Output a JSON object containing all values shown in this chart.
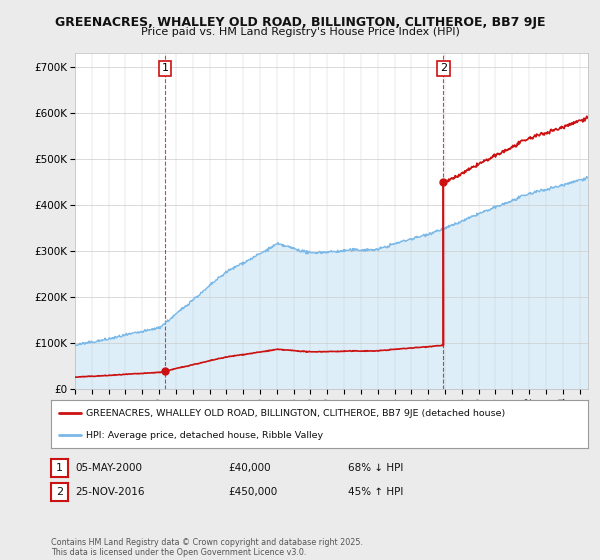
{
  "title_line1": "GREENACRES, WHALLEY OLD ROAD, BILLINGTON, CLITHEROE, BB7 9JE",
  "title_line2": "Price paid vs. HM Land Registry's House Price Index (HPI)",
  "ylim": [
    0,
    730000
  ],
  "yticks": [
    0,
    100000,
    200000,
    300000,
    400000,
    500000,
    600000,
    700000
  ],
  "ytick_labels": [
    "£0",
    "£100K",
    "£200K",
    "£300K",
    "£400K",
    "£500K",
    "£600K",
    "£700K"
  ],
  "hpi_color": "#7ab8e8",
  "hpi_fill_color": "#ddeef8",
  "sale_color": "#cc1111",
  "sale1_x": 2000.35,
  "sale1_y": 40000,
  "sale2_x": 2016.9,
  "sale2_y": 450000,
  "legend_line1": "GREENACRES, WHALLEY OLD ROAD, BILLINGTON, CLITHEROE, BB7 9JE (detached house)",
  "legend_line2": "HPI: Average price, detached house, Ribble Valley",
  "footer": "Contains HM Land Registry data © Crown copyright and database right 2025.\nThis data is licensed under the Open Government Licence v3.0.",
  "table_row1": [
    "1",
    "05-MAY-2000",
    "£40,000",
    "68% ↓ HPI"
  ],
  "table_row2": [
    "2",
    "25-NOV-2016",
    "£450,000",
    "45% ↑ HPI"
  ],
  "background_color": "#ebebeb",
  "plot_bg_color": "#ffffff",
  "xmin": 1995,
  "xmax": 2025.5
}
